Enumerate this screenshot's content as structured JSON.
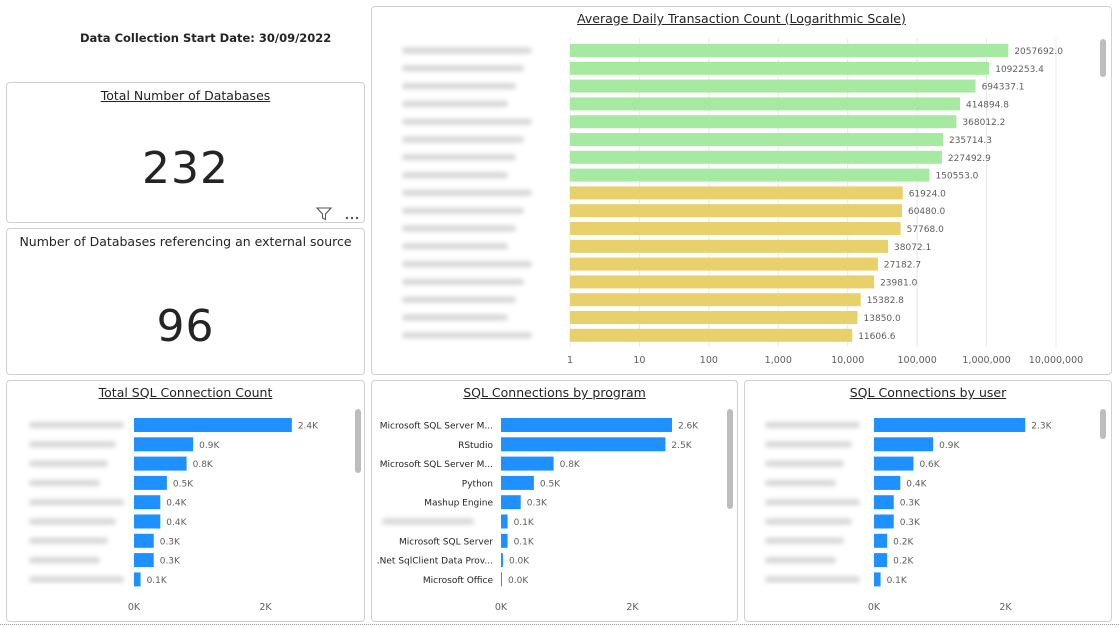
{
  "header": {
    "start_label": "Data Collection Start Date:",
    "start_value": "30/09/2022"
  },
  "kpi_total": {
    "title": "Total Number of Databases",
    "value": "232"
  },
  "kpi_external": {
    "title": "Number of Databases referencing an external source",
    "value": "96"
  },
  "colors": {
    "high": "#a6e9a1",
    "low": "#e8d06a",
    "blue": "#1e90ff"
  },
  "icons": [
    "filter-icon",
    "more-options-icon"
  ],
  "chart_data": [
    {
      "id": "avg-daily",
      "type": "bar",
      "orientation": "horizontal",
      "scale": "log",
      "title": "Average Daily Transaction Count (Logarithmic Scale)",
      "categories": [
        "",
        "",
        "",
        "",
        "",
        "",
        "",
        "",
        "",
        "",
        "",
        "",
        "",
        "",
        "",
        "",
        ""
      ],
      "values": [
        2057692.0,
        1092253.4,
        694337.1,
        414894.8,
        368012.2,
        235714.3,
        227492.9,
        150553.0,
        61924.0,
        60480.0,
        57768.0,
        38072.1,
        27182.7,
        23981.0,
        15382.8,
        13850.0,
        11606.6
      ],
      "value_labels": [
        "2057692.0",
        "1092253.4",
        "694337.1",
        "414894.8",
        "368012.2",
        "235714.3",
        "227492.9",
        "150553.0",
        "61924.0",
        "60480.0",
        "57768.0",
        "38072.1",
        "27182.7",
        "23981.0",
        "15382.8",
        "13850.0",
        "11606.6"
      ],
      "bar_colors": [
        "#a6e9a1",
        "#a6e9a1",
        "#a6e9a1",
        "#a6e9a1",
        "#a6e9a1",
        "#a6e9a1",
        "#a6e9a1",
        "#a6e9a1",
        "#e8d06a",
        "#e8d06a",
        "#e8d06a",
        "#e8d06a",
        "#e8d06a",
        "#e8d06a",
        "#e8d06a",
        "#e8d06a",
        "#e8d06a"
      ],
      "xlim": [
        1,
        10000000
      ],
      "ticks": [
        1,
        10,
        100,
        1000,
        10000,
        100000,
        1000000,
        10000000
      ],
      "tick_labels": [
        "1",
        "10",
        "100",
        "1,000",
        "10,000",
        "100,000",
        "1,000,000",
        "10,000,000"
      ]
    },
    {
      "id": "total-sql",
      "type": "bar",
      "orientation": "horizontal",
      "title": "Total SQL Connection Count",
      "categories": [
        "",
        "",
        "",
        "",
        "",
        "",
        "",
        "",
        ""
      ],
      "values": [
        2.4,
        0.9,
        0.8,
        0.5,
        0.4,
        0.4,
        0.3,
        0.3,
        0.1
      ],
      "value_labels": [
        "2.4K",
        "0.9K",
        "0.8K",
        "0.5K",
        "0.4K",
        "0.4K",
        "0.3K",
        "0.3K",
        "0.1K"
      ],
      "xlim": [
        0,
        2.95
      ],
      "ticks": [
        0,
        2
      ],
      "tick_labels": [
        "0K",
        "2K"
      ]
    },
    {
      "id": "by-program",
      "type": "bar",
      "orientation": "horizontal",
      "title": "SQL Connections by program",
      "categories": [
        "Microsoft SQL Server M...",
        "RStudio",
        "Microsoft SQL Server M...",
        "Python",
        "Mashup Engine",
        "",
        "Microsoft SQL Server",
        ".Net SqlClient Data Prov...",
        "Microsoft Office"
      ],
      "values": [
        2.6,
        2.5,
        0.8,
        0.5,
        0.3,
        0.1,
        0.1,
        0.03,
        0.01
      ],
      "value_labels": [
        "2.6K",
        "2.5K",
        "0.8K",
        "0.5K",
        "0.3K",
        "0.1K",
        "0.1K",
        "0.0K",
        "0.0K"
      ],
      "xlim": [
        0,
        2.95
      ],
      "ticks": [
        0,
        2
      ],
      "tick_labels": [
        "0K",
        "2K"
      ]
    },
    {
      "id": "by-user",
      "type": "bar",
      "orientation": "horizontal",
      "title": "SQL Connections by user",
      "categories": [
        "",
        "",
        "",
        "",
        "",
        "",
        "",
        "",
        ""
      ],
      "values": [
        2.3,
        0.9,
        0.6,
        0.4,
        0.3,
        0.3,
        0.2,
        0.2,
        0.1
      ],
      "value_labels": [
        "2.3K",
        "0.9K",
        "0.6K",
        "0.4K",
        "0.3K",
        "0.3K",
        "0.2K",
        "0.2K",
        "0.1K"
      ],
      "xlim": [
        0,
        2.95
      ],
      "ticks": [
        0,
        2
      ],
      "tick_labels": [
        "0K",
        "2K"
      ]
    }
  ]
}
